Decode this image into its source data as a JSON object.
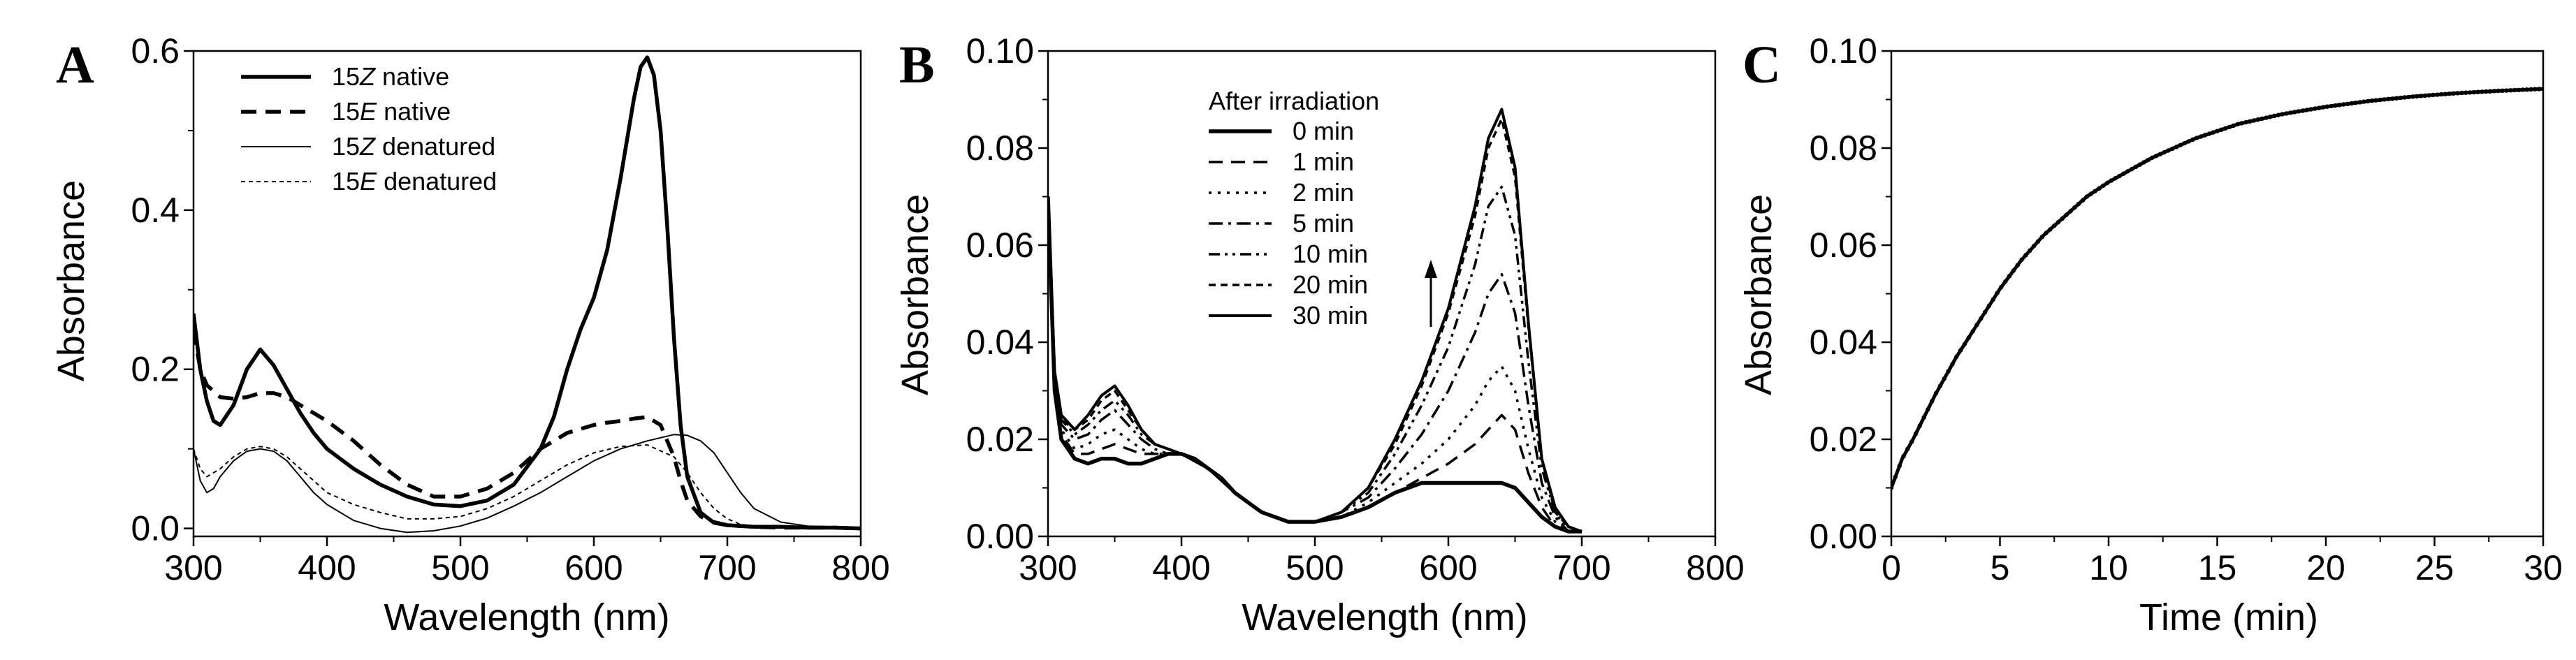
{
  "chart_data": [
    {
      "panel_label": "A",
      "type": "line",
      "xlabel": "Wavelength (nm)",
      "ylabel": "Absorbance",
      "xlim": [
        300,
        800
      ],
      "ylim": [
        -0.01,
        0.6
      ],
      "xticks": [
        300,
        400,
        500,
        600,
        700,
        800
      ],
      "yticks": [
        0.0,
        0.2,
        0.4,
        0.6
      ],
      "ytick_labels": [
        "0.0",
        "0.2",
        "0.4",
        "0.6"
      ],
      "legend_position": "top-left",
      "series": [
        {
          "name": "15Z native",
          "legend_prefix": "15",
          "legend_italic": "Z",
          "legend_suffix": " native",
          "style": "solid-thick",
          "x": [
            300,
            305,
            310,
            315,
            320,
            330,
            340,
            350,
            360,
            370,
            380,
            390,
            400,
            420,
            440,
            460,
            480,
            500,
            520,
            540,
            560,
            570,
            580,
            590,
            600,
            610,
            620,
            630,
            635,
            640,
            645,
            650,
            655,
            660,
            665,
            670,
            680,
            690,
            700,
            720,
            740,
            760,
            780,
            800
          ],
          "y": [
            0.27,
            0.2,
            0.16,
            0.135,
            0.13,
            0.155,
            0.2,
            0.225,
            0.205,
            0.175,
            0.145,
            0.12,
            0.1,
            0.075,
            0.055,
            0.04,
            0.03,
            0.028,
            0.035,
            0.055,
            0.1,
            0.14,
            0.2,
            0.25,
            0.29,
            0.35,
            0.44,
            0.54,
            0.58,
            0.592,
            0.57,
            0.5,
            0.38,
            0.24,
            0.13,
            0.065,
            0.02,
            0.007,
            0.004,
            0.002,
            0.002,
            0.001,
            0.001,
            0.0
          ]
        },
        {
          "name": "15E native",
          "legend_prefix": "15",
          "legend_italic": "E",
          "legend_suffix": " native",
          "style": "dashed-thick",
          "x": [
            300,
            305,
            310,
            320,
            330,
            340,
            350,
            360,
            370,
            380,
            390,
            400,
            420,
            440,
            460,
            480,
            500,
            520,
            540,
            560,
            580,
            600,
            610,
            620,
            630,
            640,
            650,
            660,
            665,
            670,
            680,
            690,
            700,
            720,
            740,
            760,
            780,
            800
          ],
          "y": [
            0.25,
            0.2,
            0.18,
            0.165,
            0.163,
            0.165,
            0.17,
            0.17,
            0.165,
            0.155,
            0.145,
            0.135,
            0.11,
            0.08,
            0.055,
            0.04,
            0.04,
            0.05,
            0.07,
            0.1,
            0.12,
            0.13,
            0.133,
            0.135,
            0.138,
            0.14,
            0.13,
            0.09,
            0.06,
            0.035,
            0.015,
            0.008,
            0.004,
            0.002,
            0.001,
            0.001,
            0.001,
            0.0
          ]
        },
        {
          "name": "15Z denatured",
          "legend_prefix": "15",
          "legend_italic": "Z",
          "legend_suffix": " denatured",
          "style": "solid-thin",
          "x": [
            300,
            305,
            310,
            315,
            320,
            330,
            340,
            350,
            360,
            370,
            380,
            390,
            400,
            420,
            440,
            460,
            480,
            500,
            520,
            540,
            560,
            580,
            600,
            620,
            640,
            660,
            670,
            680,
            690,
            700,
            710,
            720,
            740,
            760,
            780,
            800
          ],
          "y": [
            0.1,
            0.06,
            0.045,
            0.05,
            0.065,
            0.085,
            0.097,
            0.1,
            0.097,
            0.085,
            0.065,
            0.045,
            0.03,
            0.01,
            0.0,
            -0.005,
            -0.003,
            0.003,
            0.013,
            0.028,
            0.045,
            0.065,
            0.085,
            0.1,
            0.11,
            0.118,
            0.117,
            0.11,
            0.095,
            0.07,
            0.045,
            0.025,
            0.008,
            0.003,
            0.002,
            0.0
          ]
        },
        {
          "name": "15E denatured",
          "legend_prefix": "15",
          "legend_italic": "E",
          "legend_suffix": " denatured",
          "style": "dotted-thin",
          "x": [
            300,
            305,
            310,
            320,
            330,
            340,
            350,
            360,
            370,
            380,
            390,
            400,
            420,
            440,
            460,
            480,
            500,
            520,
            540,
            560,
            580,
            600,
            620,
            640,
            660,
            670,
            680,
            690,
            700,
            710,
            720,
            740,
            760,
            780,
            800
          ],
          "y": [
            0.1,
            0.075,
            0.065,
            0.075,
            0.09,
            0.1,
            0.103,
            0.1,
            0.09,
            0.075,
            0.06,
            0.045,
            0.03,
            0.02,
            0.012,
            0.012,
            0.015,
            0.025,
            0.04,
            0.06,
            0.08,
            0.095,
            0.103,
            0.105,
            0.09,
            0.07,
            0.045,
            0.025,
            0.012,
            0.005,
            0.003,
            0.002,
            0.001,
            0.001,
            0.0
          ]
        }
      ]
    },
    {
      "panel_label": "B",
      "type": "line",
      "xlabel": "Wavelength (nm)",
      "ylabel": "Absorbance",
      "xlim": [
        300,
        800
      ],
      "ylim": [
        0.0,
        0.1
      ],
      "xticks": [
        300,
        400,
        500,
        600,
        700,
        800
      ],
      "yticks": [
        0.0,
        0.02,
        0.04,
        0.06,
        0.08,
        0.1
      ],
      "ytick_labels": [
        "0.00",
        "0.02",
        "0.04",
        "0.06",
        "0.08",
        "0.10"
      ],
      "legend_title": "After irradiation",
      "legend_position": "top-center",
      "annotation": "upward arrow indicating increasing absorbance near 640 nm",
      "series": [
        {
          "name": "0  min",
          "style": "solid-thick",
          "x": [
            300,
            305,
            310,
            320,
            330,
            340,
            350,
            360,
            370,
            380,
            390,
            400,
            410,
            420,
            430,
            440,
            460,
            480,
            500,
            520,
            540,
            560,
            580,
            600,
            620,
            630,
            640,
            650,
            660,
            670,
            680,
            690,
            700
          ],
          "y": [
            0.07,
            0.03,
            0.02,
            0.016,
            0.015,
            0.016,
            0.016,
            0.015,
            0.015,
            0.016,
            0.017,
            0.017,
            0.016,
            0.014,
            0.012,
            0.009,
            0.005,
            0.003,
            0.003,
            0.004,
            0.006,
            0.009,
            0.011,
            0.011,
            0.011,
            0.011,
            0.011,
            0.01,
            0.007,
            0.004,
            0.002,
            0.001,
            0.001
          ]
        },
        {
          "name": "1  min",
          "style": "dash-long",
          "x": [
            300,
            305,
            310,
            320,
            330,
            340,
            350,
            360,
            370,
            380,
            390,
            400,
            420,
            440,
            460,
            480,
            500,
            520,
            540,
            560,
            580,
            600,
            620,
            630,
            640,
            650,
            660,
            670,
            680,
            690,
            700
          ],
          "y": [
            0.07,
            0.03,
            0.021,
            0.017,
            0.017,
            0.018,
            0.019,
            0.018,
            0.017,
            0.017,
            0.017,
            0.017,
            0.014,
            0.009,
            0.005,
            0.003,
            0.003,
            0.004,
            0.006,
            0.009,
            0.012,
            0.015,
            0.019,
            0.022,
            0.025,
            0.022,
            0.013,
            0.006,
            0.002,
            0.001,
            0.001
          ]
        },
        {
          "name": "2  min",
          "style": "dot",
          "x": [
            300,
            305,
            310,
            320,
            330,
            340,
            350,
            360,
            370,
            380,
            390,
            400,
            420,
            440,
            460,
            480,
            500,
            520,
            540,
            560,
            580,
            600,
            620,
            630,
            640,
            650,
            660,
            670,
            680,
            690,
            700
          ],
          "y": [
            0.07,
            0.031,
            0.022,
            0.018,
            0.019,
            0.021,
            0.022,
            0.02,
            0.018,
            0.017,
            0.017,
            0.017,
            0.014,
            0.009,
            0.005,
            0.003,
            0.003,
            0.004,
            0.007,
            0.011,
            0.015,
            0.02,
            0.027,
            0.032,
            0.035,
            0.03,
            0.018,
            0.008,
            0.003,
            0.001,
            0.001
          ]
        },
        {
          "name": "5  min",
          "style": "dash-dot",
          "x": [
            300,
            305,
            310,
            320,
            330,
            340,
            350,
            360,
            370,
            380,
            390,
            400,
            420,
            440,
            460,
            480,
            500,
            520,
            540,
            560,
            580,
            600,
            620,
            630,
            640,
            650,
            660,
            670,
            680,
            690,
            700
          ],
          "y": [
            0.07,
            0.032,
            0.023,
            0.02,
            0.021,
            0.024,
            0.026,
            0.023,
            0.02,
            0.018,
            0.017,
            0.017,
            0.014,
            0.009,
            0.005,
            0.003,
            0.003,
            0.005,
            0.008,
            0.014,
            0.021,
            0.03,
            0.042,
            0.05,
            0.054,
            0.046,
            0.027,
            0.011,
            0.004,
            0.001,
            0.001
          ]
        },
        {
          "name": "10 min",
          "style": "dash-dot-dot",
          "x": [
            300,
            305,
            310,
            320,
            330,
            340,
            350,
            360,
            370,
            380,
            390,
            400,
            420,
            440,
            460,
            480,
            500,
            520,
            540,
            560,
            580,
            600,
            620,
            630,
            640,
            650,
            660,
            670,
            680,
            690,
            700
          ],
          "y": [
            0.07,
            0.033,
            0.024,
            0.021,
            0.023,
            0.026,
            0.028,
            0.025,
            0.021,
            0.019,
            0.018,
            0.017,
            0.014,
            0.009,
            0.005,
            0.003,
            0.003,
            0.005,
            0.009,
            0.017,
            0.027,
            0.039,
            0.056,
            0.068,
            0.072,
            0.062,
            0.036,
            0.014,
            0.005,
            0.001,
            0.001
          ]
        },
        {
          "name": "20 min",
          "style": "dash-short",
          "x": [
            300,
            305,
            310,
            320,
            330,
            340,
            350,
            360,
            370,
            380,
            390,
            400,
            420,
            440,
            460,
            480,
            500,
            520,
            540,
            560,
            580,
            600,
            620,
            630,
            640,
            650,
            660,
            670,
            680,
            690,
            700
          ],
          "y": [
            0.07,
            0.034,
            0.024,
            0.022,
            0.024,
            0.028,
            0.03,
            0.026,
            0.022,
            0.019,
            0.018,
            0.017,
            0.014,
            0.009,
            0.005,
            0.003,
            0.003,
            0.005,
            0.01,
            0.019,
            0.031,
            0.046,
            0.066,
            0.08,
            0.086,
            0.074,
            0.043,
            0.016,
            0.005,
            0.002,
            0.001
          ]
        },
        {
          "name": "30 min",
          "style": "solid",
          "x": [
            300,
            305,
            310,
            320,
            330,
            340,
            350,
            360,
            370,
            380,
            390,
            400,
            420,
            440,
            460,
            480,
            500,
            520,
            540,
            560,
            580,
            600,
            620,
            630,
            640,
            650,
            660,
            670,
            680,
            690,
            700
          ],
          "y": [
            0.07,
            0.034,
            0.025,
            0.022,
            0.025,
            0.029,
            0.031,
            0.027,
            0.022,
            0.019,
            0.018,
            0.017,
            0.014,
            0.009,
            0.005,
            0.003,
            0.003,
            0.005,
            0.01,
            0.02,
            0.032,
            0.047,
            0.068,
            0.082,
            0.088,
            0.076,
            0.044,
            0.016,
            0.006,
            0.002,
            0.001
          ]
        }
      ]
    },
    {
      "panel_label": "C",
      "type": "scatter",
      "xlabel": "Time (min)",
      "ylabel": "Absorbance",
      "xlim": [
        0,
        30
      ],
      "ylim": [
        0.0,
        0.1
      ],
      "xticks": [
        0,
        5,
        10,
        15,
        20,
        25,
        30
      ],
      "yticks": [
        0.0,
        0.02,
        0.04,
        0.06,
        0.08,
        0.1
      ],
      "ytick_labels": [
        "0.00",
        "0.02",
        "0.04",
        "0.06",
        "0.08",
        "0.10"
      ],
      "series": [
        {
          "name": "Absorbance vs time",
          "style": "dense-markers",
          "x": [
            0,
            0.5,
            1,
            2,
            3,
            4,
            5,
            6,
            7,
            8,
            9,
            10,
            12,
            14,
            16,
            18,
            20,
            22,
            24,
            26,
            28,
            30
          ],
          "y": [
            0.01,
            0.016,
            0.02,
            0.029,
            0.037,
            0.044,
            0.051,
            0.057,
            0.062,
            0.066,
            0.07,
            0.073,
            0.078,
            0.082,
            0.085,
            0.087,
            0.0885,
            0.0897,
            0.0906,
            0.0913,
            0.0918,
            0.0922
          ]
        }
      ]
    }
  ]
}
